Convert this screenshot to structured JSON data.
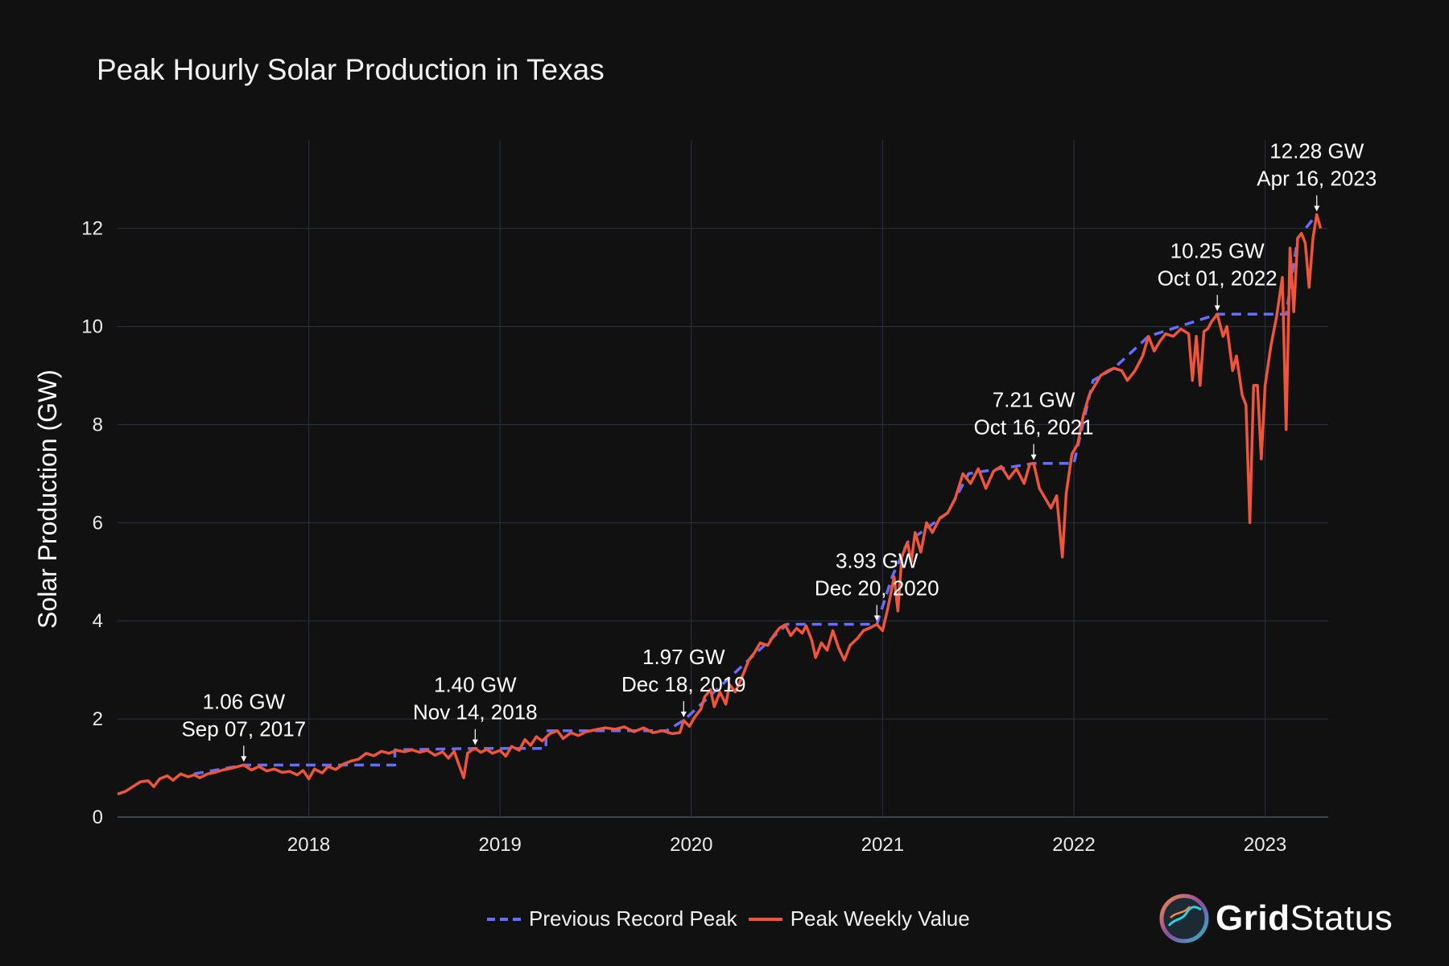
{
  "chart_data": {
    "type": "line",
    "title": "Peak Hourly Solar Production in Texas",
    "ylabel": "Solar Production (GW)",
    "xlabel": "",
    "xlim": [
      2017.0,
      2023.33
    ],
    "ylim": [
      0,
      13.8
    ],
    "x_ticks": [
      {
        "value": 2018,
        "label": "2018"
      },
      {
        "value": 2019,
        "label": "2019"
      },
      {
        "value": 2020,
        "label": "2020"
      },
      {
        "value": 2021,
        "label": "2021"
      },
      {
        "value": 2022,
        "label": "2022"
      },
      {
        "value": 2023,
        "label": "2023"
      }
    ],
    "y_ticks": [
      {
        "value": 0,
        "label": "0"
      },
      {
        "value": 2,
        "label": "2"
      },
      {
        "value": 4,
        "label": "4"
      },
      {
        "value": 6,
        "label": "6"
      },
      {
        "value": 8,
        "label": "8"
      },
      {
        "value": 10,
        "label": "10"
      },
      {
        "value": 12,
        "label": "12"
      }
    ],
    "grid": true,
    "legend_position": "bottom-center",
    "series": [
      {
        "name": "Peak Weekly Value",
        "color": "#EF553B",
        "style": "solid",
        "points": [
          [
            2017.0,
            0.47
          ],
          [
            2017.04,
            0.52
          ],
          [
            2017.08,
            0.62
          ],
          [
            2017.12,
            0.72
          ],
          [
            2017.16,
            0.74
          ],
          [
            2017.19,
            0.62
          ],
          [
            2017.22,
            0.78
          ],
          [
            2017.26,
            0.84
          ],
          [
            2017.29,
            0.75
          ],
          [
            2017.33,
            0.88
          ],
          [
            2017.37,
            0.82
          ],
          [
            2017.4,
            0.86
          ],
          [
            2017.43,
            0.8
          ],
          [
            2017.47,
            0.88
          ],
          [
            2017.51,
            0.91
          ],
          [
            2017.55,
            0.96
          ],
          [
            2017.6,
            1.0
          ],
          [
            2017.64,
            1.04
          ],
          [
            2017.66,
            1.06
          ],
          [
            2017.7,
            0.96
          ],
          [
            2017.74,
            1.03
          ],
          [
            2017.78,
            0.94
          ],
          [
            2017.82,
            0.98
          ],
          [
            2017.86,
            0.91
          ],
          [
            2017.9,
            0.93
          ],
          [
            2017.94,
            0.86
          ],
          [
            2017.97,
            0.95
          ],
          [
            2018.0,
            0.78
          ],
          [
            2018.03,
            0.98
          ],
          [
            2018.07,
            0.9
          ],
          [
            2018.1,
            1.03
          ],
          [
            2018.14,
            0.97
          ],
          [
            2018.18,
            1.08
          ],
          [
            2018.22,
            1.14
          ],
          [
            2018.26,
            1.18
          ],
          [
            2018.3,
            1.3
          ],
          [
            2018.34,
            1.25
          ],
          [
            2018.38,
            1.34
          ],
          [
            2018.42,
            1.3
          ],
          [
            2018.46,
            1.36
          ],
          [
            2018.5,
            1.33
          ],
          [
            2018.54,
            1.37
          ],
          [
            2018.58,
            1.32
          ],
          [
            2018.62,
            1.36
          ],
          [
            2018.66,
            1.26
          ],
          [
            2018.7,
            1.33
          ],
          [
            2018.73,
            1.2
          ],
          [
            2018.76,
            1.34
          ],
          [
            2018.78,
            1.12
          ],
          [
            2018.81,
            0.8
          ],
          [
            2018.83,
            1.3
          ],
          [
            2018.85,
            1.36
          ],
          [
            2018.87,
            1.4
          ],
          [
            2018.9,
            1.32
          ],
          [
            2018.93,
            1.38
          ],
          [
            2018.96,
            1.3
          ],
          [
            2019.0,
            1.36
          ],
          [
            2019.03,
            1.24
          ],
          [
            2019.06,
            1.44
          ],
          [
            2019.1,
            1.36
          ],
          [
            2019.13,
            1.58
          ],
          [
            2019.16,
            1.46
          ],
          [
            2019.19,
            1.64
          ],
          [
            2019.22,
            1.55
          ],
          [
            2019.26,
            1.7
          ],
          [
            2019.3,
            1.76
          ],
          [
            2019.33,
            1.6
          ],
          [
            2019.37,
            1.72
          ],
          [
            2019.41,
            1.66
          ],
          [
            2019.45,
            1.74
          ],
          [
            2019.5,
            1.78
          ],
          [
            2019.55,
            1.82
          ],
          [
            2019.6,
            1.79
          ],
          [
            2019.65,
            1.84
          ],
          [
            2019.7,
            1.74
          ],
          [
            2019.75,
            1.82
          ],
          [
            2019.8,
            1.72
          ],
          [
            2019.85,
            1.76
          ],
          [
            2019.9,
            1.7
          ],
          [
            2019.94,
            1.72
          ],
          [
            2019.96,
            1.97
          ],
          [
            2019.99,
            1.85
          ],
          [
            2020.02,
            2.05
          ],
          [
            2020.05,
            2.2
          ],
          [
            2020.07,
            2.45
          ],
          [
            2020.1,
            2.6
          ],
          [
            2020.12,
            2.25
          ],
          [
            2020.15,
            2.55
          ],
          [
            2020.18,
            2.3
          ],
          [
            2020.2,
            2.7
          ],
          [
            2020.23,
            2.55
          ],
          [
            2020.27,
            2.9
          ],
          [
            2020.3,
            3.2
          ],
          [
            2020.33,
            3.35
          ],
          [
            2020.36,
            3.55
          ],
          [
            2020.4,
            3.5
          ],
          [
            2020.43,
            3.7
          ],
          [
            2020.46,
            3.85
          ],
          [
            2020.49,
            3.92
          ],
          [
            2020.52,
            3.7
          ],
          [
            2020.55,
            3.85
          ],
          [
            2020.58,
            3.75
          ],
          [
            2020.6,
            3.9
          ],
          [
            2020.63,
            3.6
          ],
          [
            2020.65,
            3.25
          ],
          [
            2020.68,
            3.55
          ],
          [
            2020.71,
            3.4
          ],
          [
            2020.74,
            3.8
          ],
          [
            2020.77,
            3.45
          ],
          [
            2020.8,
            3.2
          ],
          [
            2020.83,
            3.5
          ],
          [
            2020.87,
            3.65
          ],
          [
            2020.9,
            3.8
          ],
          [
            2020.93,
            3.85
          ],
          [
            2020.97,
            3.93
          ],
          [
            2021.0,
            3.8
          ],
          [
            2021.03,
            4.3
          ],
          [
            2021.06,
            4.9
          ],
          [
            2021.08,
            4.2
          ],
          [
            2021.1,
            5.3
          ],
          [
            2021.13,
            5.6
          ],
          [
            2021.15,
            5.2
          ],
          [
            2021.17,
            5.8
          ],
          [
            2021.2,
            5.4
          ],
          [
            2021.23,
            6.0
          ],
          [
            2021.26,
            5.8
          ],
          [
            2021.3,
            6.1
          ],
          [
            2021.34,
            6.2
          ],
          [
            2021.38,
            6.5
          ],
          [
            2021.42,
            7.0
          ],
          [
            2021.46,
            6.8
          ],
          [
            2021.5,
            7.1
          ],
          [
            2021.54,
            6.7
          ],
          [
            2021.58,
            7.05
          ],
          [
            2021.62,
            7.15
          ],
          [
            2021.66,
            6.9
          ],
          [
            2021.7,
            7.1
          ],
          [
            2021.74,
            6.8
          ],
          [
            2021.77,
            7.2
          ],
          [
            2021.79,
            7.21
          ],
          [
            2021.82,
            6.7
          ],
          [
            2021.85,
            6.5
          ],
          [
            2021.88,
            6.3
          ],
          [
            2021.91,
            6.55
          ],
          [
            2021.94,
            5.3
          ],
          [
            2021.96,
            6.6
          ],
          [
            2021.99,
            7.4
          ],
          [
            2022.02,
            7.6
          ],
          [
            2022.05,
            8.2
          ],
          [
            2022.08,
            8.6
          ],
          [
            2022.11,
            8.8
          ],
          [
            2022.14,
            9.0
          ],
          [
            2022.18,
            9.1
          ],
          [
            2022.21,
            9.15
          ],
          [
            2022.25,
            9.1
          ],
          [
            2022.28,
            8.9
          ],
          [
            2022.32,
            9.1
          ],
          [
            2022.36,
            9.4
          ],
          [
            2022.39,
            9.8
          ],
          [
            2022.42,
            9.5
          ],
          [
            2022.45,
            9.7
          ],
          [
            2022.48,
            9.85
          ],
          [
            2022.52,
            9.8
          ],
          [
            2022.56,
            9.95
          ],
          [
            2022.6,
            9.85
          ],
          [
            2022.62,
            8.9
          ],
          [
            2022.64,
            9.8
          ],
          [
            2022.66,
            8.8
          ],
          [
            2022.68,
            9.9
          ],
          [
            2022.7,
            9.95
          ],
          [
            2022.72,
            10.1
          ],
          [
            2022.75,
            10.25
          ],
          [
            2022.78,
            9.8
          ],
          [
            2022.8,
            10.0
          ],
          [
            2022.83,
            9.1
          ],
          [
            2022.85,
            9.4
          ],
          [
            2022.88,
            8.6
          ],
          [
            2022.9,
            8.4
          ],
          [
            2022.92,
            6.0
          ],
          [
            2022.94,
            8.8
          ],
          [
            2022.96,
            8.8
          ],
          [
            2022.98,
            7.3
          ],
          [
            2023.0,
            8.8
          ],
          [
            2023.03,
            9.6
          ],
          [
            2023.06,
            10.2
          ],
          [
            2023.09,
            11.0
          ],
          [
            2023.11,
            7.9
          ],
          [
            2023.13,
            11.6
          ],
          [
            2023.15,
            10.3
          ],
          [
            2023.17,
            11.8
          ],
          [
            2023.19,
            11.9
          ],
          [
            2023.21,
            11.7
          ],
          [
            2023.23,
            10.8
          ],
          [
            2023.25,
            11.8
          ],
          [
            2023.27,
            12.28
          ],
          [
            2023.29,
            12.0
          ]
        ]
      },
      {
        "name": "Previous Record Peak",
        "color": "#636EFA",
        "style": "dashed",
        "points": [
          [
            2017.4,
            0.88
          ],
          [
            2017.66,
            1.06
          ],
          [
            2018.45,
            1.06
          ],
          [
            2018.45,
            1.37
          ],
          [
            2018.87,
            1.4
          ],
          [
            2019.24,
            1.4
          ],
          [
            2019.24,
            1.76
          ],
          [
            2019.87,
            1.76
          ],
          [
            2019.96,
            1.97
          ],
          [
            2020.5,
            3.93
          ],
          [
            2020.97,
            3.93
          ],
          [
            2021.05,
            4.9
          ],
          [
            2021.13,
            5.6
          ],
          [
            2021.34,
            6.2
          ],
          [
            2021.45,
            7.0
          ],
          [
            2021.79,
            7.21
          ],
          [
            2022.0,
            7.21
          ],
          [
            2022.1,
            8.9
          ],
          [
            2022.21,
            9.15
          ],
          [
            2022.39,
            9.8
          ],
          [
            2022.75,
            10.25
          ],
          [
            2023.11,
            10.25
          ],
          [
            2023.17,
            11.8
          ],
          [
            2023.27,
            12.28
          ]
        ]
      }
    ],
    "annotations": [
      {
        "x": 2017.66,
        "y": 1.06,
        "value_text": "1.06 GW",
        "date_text": "Sep 07, 2017"
      },
      {
        "x": 2018.87,
        "y": 1.4,
        "value_text": "1.40 GW",
        "date_text": "Nov 14, 2018"
      },
      {
        "x": 2019.96,
        "y": 1.97,
        "value_text": "1.97 GW",
        "date_text": "Dec 18, 2019"
      },
      {
        "x": 2020.97,
        "y": 3.93,
        "value_text": "3.93 GW",
        "date_text": "Dec 20, 2020"
      },
      {
        "x": 2021.79,
        "y": 7.21,
        "value_text": "7.21 GW",
        "date_text": "Oct 16, 2021"
      },
      {
        "x": 2022.75,
        "y": 10.25,
        "value_text": "10.25 GW",
        "date_text": "Oct 01, 2022"
      },
      {
        "x": 2023.27,
        "y": 12.28,
        "value_text": "12.28 GW",
        "date_text": "Apr 16, 2023"
      }
    ]
  },
  "legend": {
    "items": [
      {
        "label": "Previous Record Peak",
        "color": "#636EFA"
      },
      {
        "label": "Peak Weekly Value",
        "color": "#EF553B"
      }
    ]
  },
  "brand": {
    "name_bold": "Grid",
    "name_regular": "Status"
  }
}
